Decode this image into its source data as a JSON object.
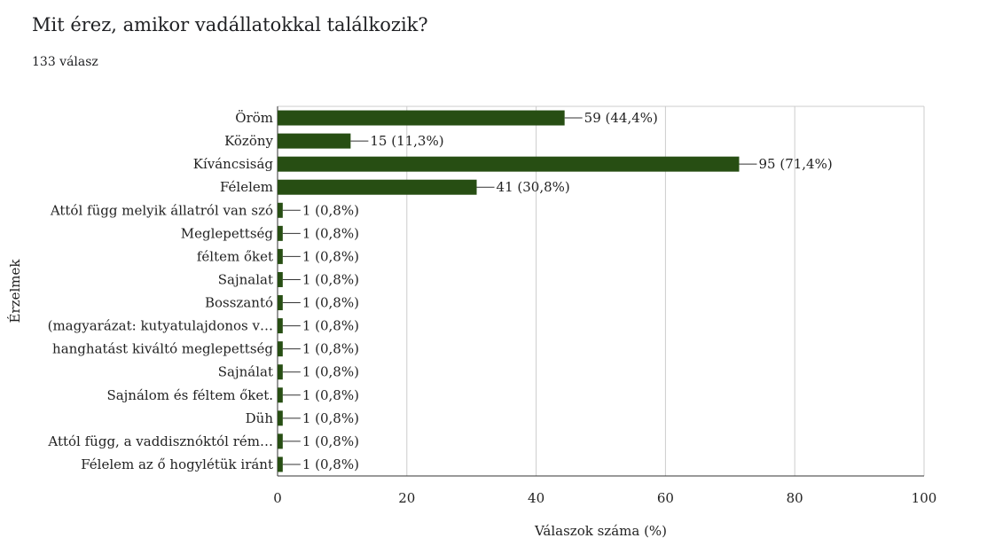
{
  "question": {
    "title": "Mit érez, amikor vadállatokkal találkozik?",
    "response_count": "133 válasz"
  },
  "colors": {
    "bar": "#274e13",
    "grid": "#cccccc",
    "axis": "#333333",
    "text": "#222222"
  },
  "chart_data": {
    "type": "bar",
    "orientation": "horizontal",
    "xlabel": "Válaszok száma (%)",
    "ylabel": "Érzelmek",
    "xlim": [
      0,
      100
    ],
    "x_ticks": [
      "0",
      "20",
      "40",
      "60",
      "80",
      "100"
    ],
    "grid": true,
    "categories": [
      "Öröm",
      "Közöny",
      "Kíváncsiság",
      "Félelem",
      "Attól függ melyik állatról van szó",
      "Meglepettség",
      "féltem őket",
      "Sajnalat",
      "Bosszantó",
      "(magyarázat: kutyatulajdonos v…",
      "hanghatást kiváltó meglepettség",
      "Sajnálat",
      "Sajnálom és féltem őket.",
      "Düh",
      "Attól függ, a vaddisznóktól rém…",
      "Félelem az ő hogylétük iránt"
    ],
    "values": [
      44.4,
      11.3,
      71.4,
      30.8,
      0.8,
      0.8,
      0.8,
      0.8,
      0.8,
      0.8,
      0.8,
      0.8,
      0.8,
      0.8,
      0.8,
      0.8
    ],
    "data_labels": [
      "59 (44,4%)",
      "15 (11,3%)",
      "95 (71,4%)",
      "41 (30,8%)",
      "1 (0,8%)",
      "1 (0,8%)",
      "1 (0,8%)",
      "1 (0,8%)",
      "1 (0,8%)",
      "1 (0,8%)",
      "1 (0,8%)",
      "1 (0,8%)",
      "1 (0,8%)",
      "1 (0,8%)",
      "1 (0,8%)",
      "1 (0,8%)"
    ]
  }
}
